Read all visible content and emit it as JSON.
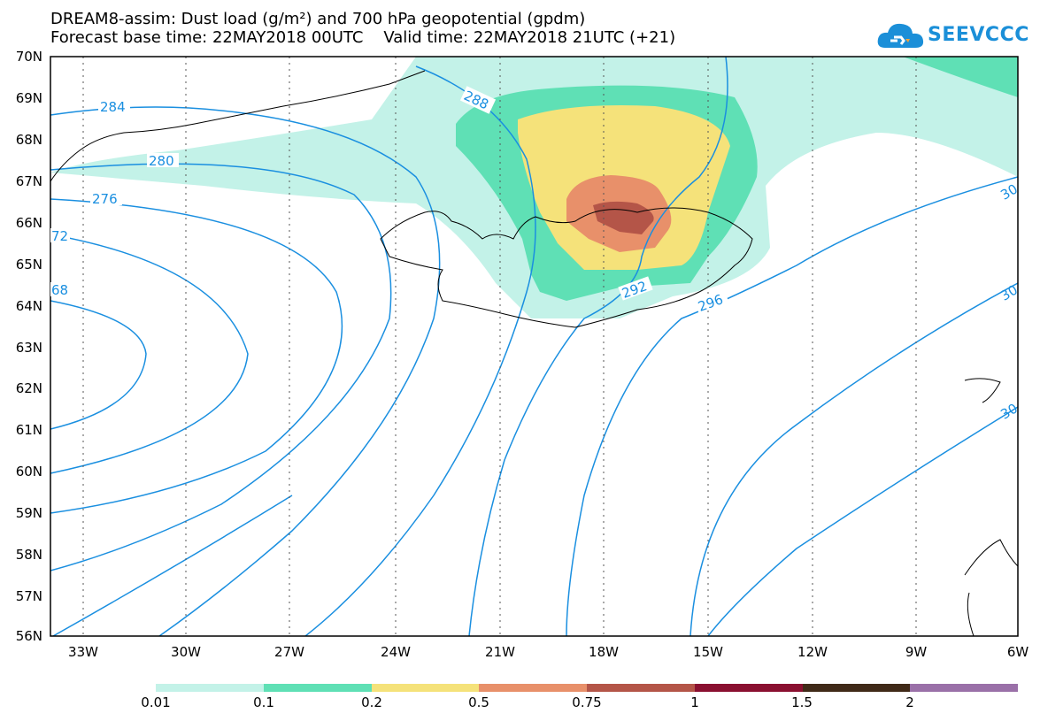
{
  "header": {
    "title_line1": "DREAM8-assim: Dust load (g/m²) and 700 hPa geopotential (gpdm)",
    "title_line2": "Forecast base time: 22MAY2018 00UTC    Valid time: 22MAY2018 21UTC (+21)"
  },
  "logo": {
    "text": "SEEVCCC",
    "icon": "cloud-icon",
    "color": "#1b8fd8"
  },
  "map": {
    "lat_labels": [
      "70N",
      "69N",
      "68N",
      "67N",
      "66N",
      "65N",
      "64N",
      "63N",
      "62N",
      "61N",
      "60N",
      "59N",
      "58N",
      "57N",
      "56N"
    ],
    "lon_labels": [
      "33W",
      "30W",
      "27W",
      "24W",
      "21W",
      "18W",
      "15W",
      "12W",
      "9W",
      "6W"
    ],
    "contour_labels": [
      "284",
      "280",
      "276",
      "72",
      "68",
      "288",
      "292",
      "296",
      "30",
      "30",
      "30"
    ],
    "contour_color": "#1a8fe0",
    "coast_color": "#000000"
  },
  "legend": {
    "colors": [
      "#c3f2e8",
      "#5fe0b5",
      "#f5e27a",
      "#e8906a",
      "#b45548",
      "#8a1030",
      "#402a18",
      "#9a70a8"
    ],
    "labels": [
      "0.01",
      "0.1",
      "0.2",
      "0.5",
      "0.75",
      "1",
      "1.5",
      "2"
    ]
  }
}
